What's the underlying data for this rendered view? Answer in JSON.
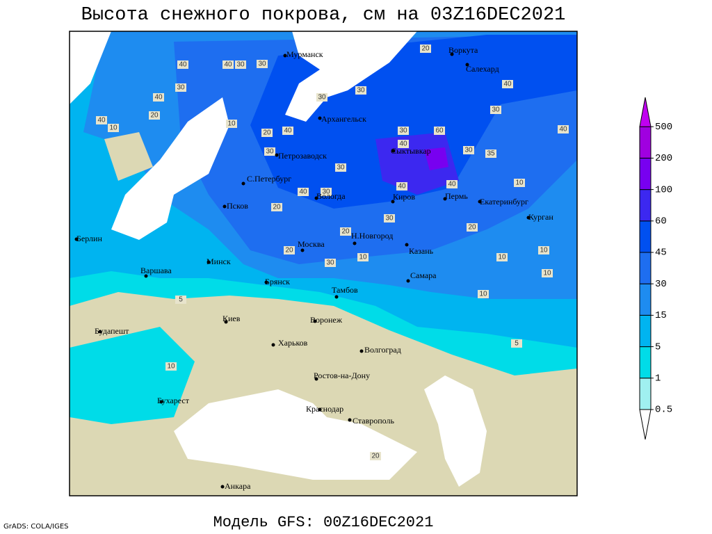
{
  "header": {
    "title": "Высота снежного покрова, см на 03Z16DEC2021"
  },
  "footer": {
    "model": "Модель GFS: 00Z16DEC2021",
    "credit": "GrADS: COLA/IGES"
  },
  "legend": {
    "levels": [
      0.5,
      1,
      5,
      15,
      30,
      45,
      60,
      100,
      200,
      500
    ],
    "colors": [
      "#ffffff",
      "#a0f0f0",
      "#00dce8",
      "#00b4f0",
      "#1e8cf0",
      "#1e6ef0",
      "#0050f0",
      "#3c28f0",
      "#7800f0",
      "#a000e0",
      "#c000f0"
    ]
  },
  "cities": [
    "Мурманск",
    "Воркута",
    "Салехард",
    "Архангельск",
    "Сыктывкар",
    "Петрозаводск",
    "С.Петербург",
    "Вологда",
    "Киров",
    "Пермь",
    "Екатеринбург",
    "Курган",
    "Псков",
    "Берлин",
    "Варшава",
    "Минск",
    "Москва",
    "Н.Новгород",
    "Казань",
    "Брянск",
    "Тамбов",
    "Самара",
    "Киев",
    "Воронеж",
    "Будапешт",
    "Харьков",
    "Волгоград",
    "Ростов-на-Дону",
    "Бухарест",
    "Краснодар",
    "Ставрополь",
    "Анкара"
  ],
  "contour_labels": [
    40,
    40,
    30,
    30,
    30,
    40,
    30,
    30,
    20,
    40,
    30,
    40,
    10,
    20,
    40,
    10,
    20,
    40,
    30,
    60,
    40,
    30,
    30,
    30,
    35,
    10,
    40,
    30,
    20,
    30,
    20,
    20,
    20,
    30,
    10,
    10,
    10,
    10,
    10,
    5,
    5,
    10,
    20,
    40,
    40
  ]
}
